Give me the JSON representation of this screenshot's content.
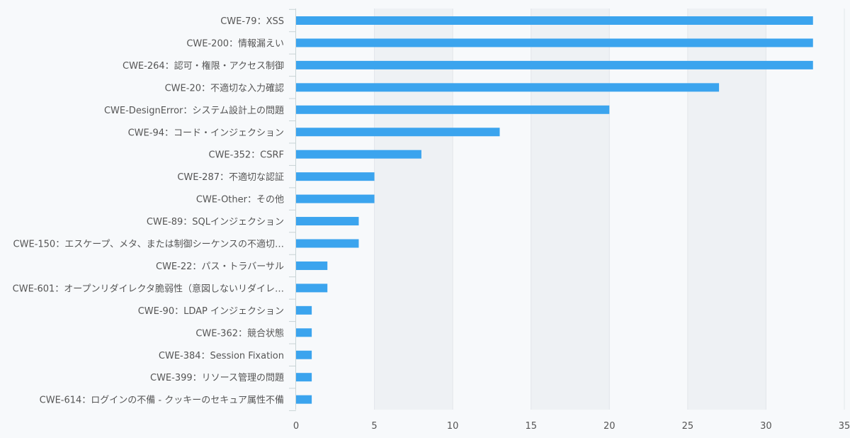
{
  "chart_data": {
    "type": "bar",
    "orientation": "horizontal",
    "title": "",
    "xlabel": "",
    "ylabel": "",
    "xlim": [
      0,
      35
    ],
    "x_ticks": [
      0,
      5,
      10,
      15,
      20,
      25,
      30,
      35
    ],
    "grid": "alternating vertical bands",
    "legend": "none",
    "bar_color": "#3ba4ee",
    "band_color": "#eef1f4",
    "categories": [
      "CWE-79：XSS",
      "CWE-200：情報漏えい",
      "CWE-264：認可・権限・アクセス制御",
      "CWE-20：不適切な入力確認",
      "CWE-DesignError：システム設計上の問題",
      "CWE-94：コード・インジェクション",
      "CWE-352：CSRF",
      "CWE-287：不適切な認証",
      "CWE-Other：その他",
      "CWE-89：SQLインジェクション",
      "CWE-150：エスケープ、メタ、または制御シーケンスの不適切…",
      "CWE-22：パス・トラバーサル",
      "CWE-601：オープンリダイレクタ脆弱性（意図しないリダイレ…",
      "CWE-90：LDAP インジェクション",
      "CWE-362：競合状態",
      "CWE-384：Session Fixation",
      "CWE-399：リソース管理の問題",
      "CWE-614：ログインの不備 - クッキーのセキュア属性不備"
    ],
    "values": [
      33,
      33,
      33,
      27,
      20,
      13,
      8,
      5,
      5,
      4,
      4,
      2,
      2,
      1,
      1,
      1,
      1,
      1
    ]
  }
}
